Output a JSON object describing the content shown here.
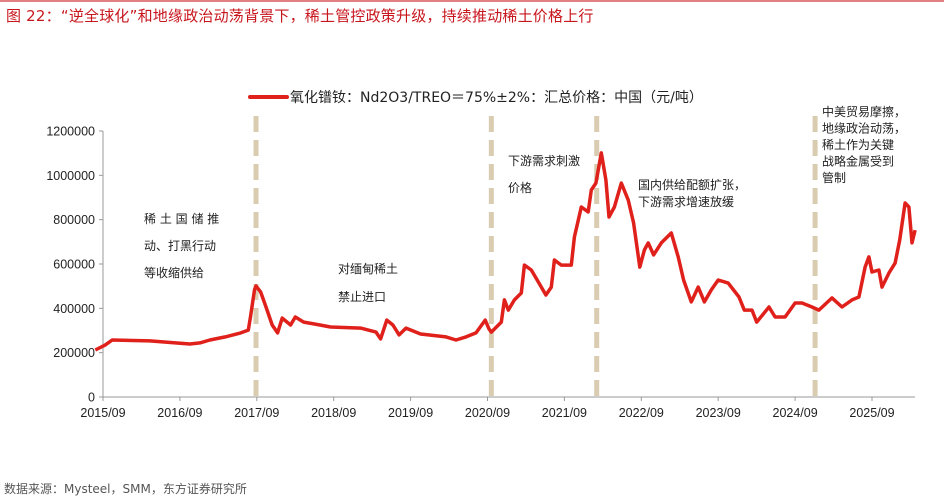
{
  "title": "图 22：“逆全球化”和地缘政治动荡背景下，稀土管控政策升级，持续推动稀土价格上行",
  "source": "数据来源：Mysteel，SMM，东方证券研究所",
  "chart_data": {
    "type": "line",
    "title": "",
    "xlabel": "",
    "ylabel": "",
    "ylim": [
      0,
      1200000
    ],
    "yticks": [
      0,
      200000,
      400000,
      600000,
      800000,
      1000000,
      1200000
    ],
    "ytick_labels": [
      "0",
      "200000",
      "400000",
      "600000",
      "800000",
      "1000000",
      "1200000"
    ],
    "xlim": [
      2015.65,
      2026.4
    ],
    "xticks": [
      2015.75,
      2016.75,
      2017.75,
      2018.75,
      2019.75,
      2020.75,
      2021.75,
      2022.75,
      2023.75,
      2024.75,
      2025.75
    ],
    "xtick_labels": [
      "2015/09",
      "2016/09",
      "2017/09",
      "2018/09",
      "2019/09",
      "2020/09",
      "2021/09",
      "2022/09",
      "2023/09",
      "2024/09",
      "2025/09"
    ],
    "grid": false,
    "legend": {
      "position": "top-center",
      "entries": [
        "氧化镨钕：Nd2O3/TREO＝75%±2%：汇总价格：中国（元/吨）"
      ]
    },
    "colors": {
      "series": "#e0201b",
      "event_line": "#d9ccb0",
      "title": "#c8161d"
    },
    "series": [
      {
        "name": "氧化镨钕：Nd2O3/TREO＝75%±2%：汇总价格：中国（元/吨）",
        "x": [
          2015.65,
          2015.78,
          2015.87,
          2016.36,
          2016.69,
          2016.88,
          2017.01,
          2017.14,
          2017.34,
          2017.54,
          2017.64,
          2017.67,
          2017.72,
          2017.74,
          2017.8,
          2017.86,
          2017.95,
          2018.02,
          2018.08,
          2018.19,
          2018.25,
          2018.36,
          2018.51,
          2018.71,
          2019.1,
          2019.3,
          2019.36,
          2019.44,
          2019.52,
          2019.6,
          2019.69,
          2019.88,
          2020.21,
          2020.34,
          2020.47,
          2020.6,
          2020.72,
          2020.77,
          2020.8,
          2020.93,
          2020.97,
          2021.02,
          2021.1,
          2021.19,
          2021.23,
          2021.32,
          2021.42,
          2021.51,
          2021.58,
          2021.62,
          2021.71,
          2021.84,
          2021.88,
          2021.97,
          2022.06,
          2022.1,
          2022.16,
          2022.23,
          2022.29,
          2022.33,
          2022.4,
          2022.49,
          2022.58,
          2022.65,
          2022.73,
          2022.79,
          2022.84,
          2022.91,
          2023.01,
          2023.14,
          2023.23,
          2023.3,
          2023.4,
          2023.49,
          2023.57,
          2023.66,
          2023.75,
          2023.88,
          2024.02,
          2024.09,
          2024.19,
          2024.25,
          2024.41,
          2024.49,
          2024.62,
          2024.75,
          2024.84,
          2024.97,
          2025.06,
          2025.23,
          2025.36,
          2025.49,
          2025.58,
          2025.66,
          2025.71,
          2025.75,
          2025.84,
          2025.88,
          2025.97,
          2026.05,
          2026.11,
          2026.18,
          2026.23,
          2026.27,
          2026.31
        ],
        "values": [
          212000,
          235000,
          257000,
          253000,
          244000,
          239000,
          244000,
          257000,
          271000,
          289000,
          302000,
          365000,
          483000,
          501000,
          474000,
          415000,
          325000,
          289000,
          356000,
          325000,
          361000,
          338000,
          329000,
          316000,
          311000,
          293000,
          262000,
          347000,
          325000,
          280000,
          311000,
          284000,
          271000,
          257000,
          271000,
          289000,
          347000,
          307000,
          293000,
          338000,
          438000,
          392000,
          438000,
          469000,
          595000,
          573000,
          514000,
          460000,
          496000,
          618000,
          595000,
          595000,
          722000,
          857000,
          835000,
          934000,
          965000,
          1101000,
          979000,
          812000,
          857000,
          965000,
          889000,
          785000,
          586000,
          663000,
          695000,
          641000,
          695000,
          740000,
          632000,
          528000,
          429000,
          496000,
          429000,
          483000,
          528000,
          514000,
          451000,
          392000,
          392000,
          338000,
          406000,
          361000,
          361000,
          424000,
          424000,
          406000,
          392000,
          447000,
          406000,
          438000,
          451000,
          586000,
          632000,
          564000,
          573000,
          496000,
          559000,
          604000,
          708000,
          875000,
          857000,
          695000,
          753000
        ]
      }
    ],
    "event_lines": [
      2017.74,
      2020.8,
      2022.17,
      2025.01
    ],
    "annotations": [
      {
        "lines": [
          "稀 土 国 储 推",
          "动、打黑行动",
          "等收缩供给"
        ]
      },
      {
        "lines": [
          "对缅甸稀土",
          "禁止进口"
        ]
      },
      {
        "lines": [
          "下游需求刺激",
          "价格"
        ]
      },
      {
        "lines": [
          "国内供给配额扩张，",
          "下游需求增速放缓"
        ]
      },
      {
        "lines": [
          "中美贸易摩擦，",
          "地缘政治动荡，",
          "稀土作为关键",
          "战略金属受到",
          "管制"
        ]
      }
    ]
  }
}
